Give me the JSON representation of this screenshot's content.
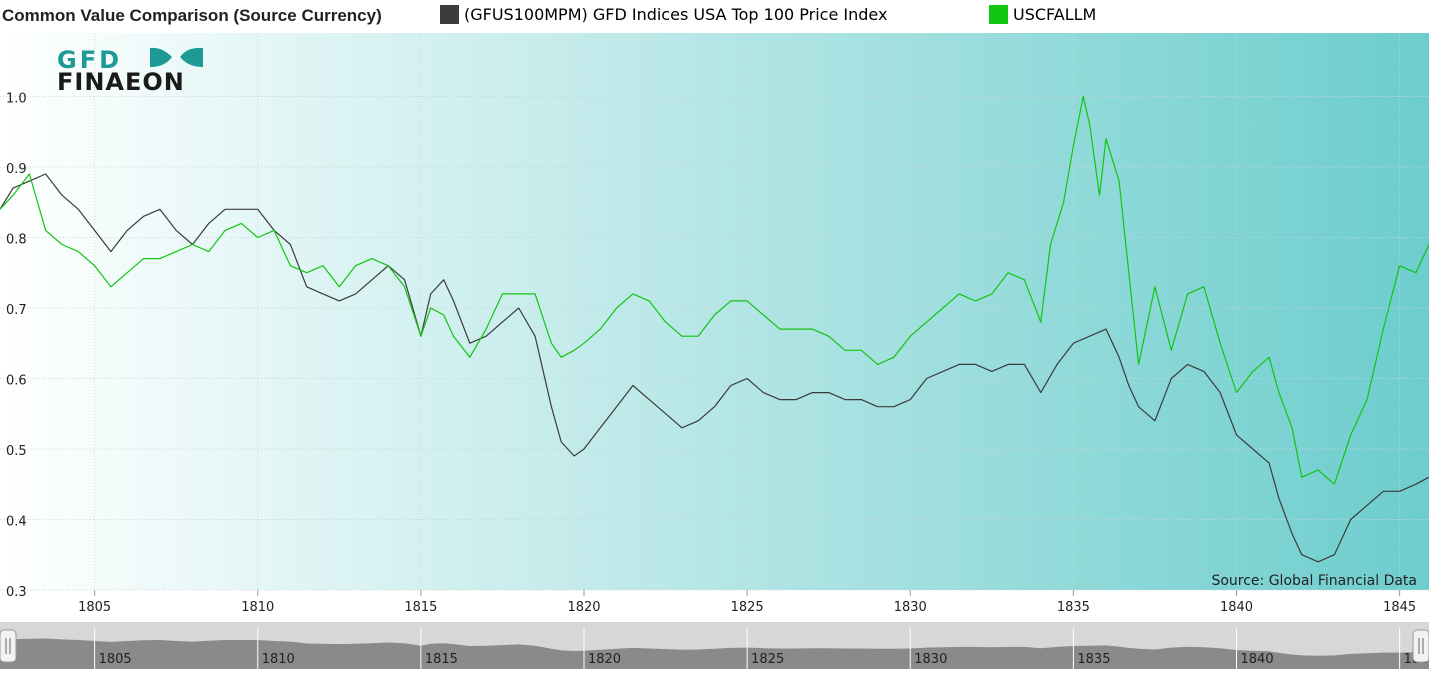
{
  "header": {
    "title": "Common Value Comparison (Source Currency)",
    "legend": [
      {
        "label": "(GFUS100MPM) GFD Indices USA Top 100 Price Index",
        "color": "#3b3b3b"
      },
      {
        "label": "USCFALLM",
        "color": "#11c511"
      }
    ]
  },
  "logo": {
    "top": "GFD",
    "bottom": "FINAEON"
  },
  "source_note": "Source: Global Financial Data",
  "colors": {
    "bg_left": "#ffffff",
    "bg_right": "#6dcdcd",
    "grid": "#c6d6d6",
    "series1": "#3b3b3b",
    "series2": "#11c511",
    "navigator_fill": "#8a8a8a",
    "navigator_bg": "#d7d7d7",
    "logo_teal": "#1e9a96",
    "logo_dark": "#1a1a1a"
  },
  "navigator": {
    "tick_labels": [
      "1805",
      "1810",
      "1815",
      "1820",
      "1825",
      "1830",
      "1835",
      "1840",
      "1845"
    ]
  },
  "chart_data": {
    "type": "line",
    "title": "Common Value Comparison (Source Currency)",
    "xlabel": "",
    "ylabel": "",
    "xlim": [
      1802.1,
      1845.9
    ],
    "ylim": [
      0.3,
      1.09
    ],
    "x_ticks": [
      1805,
      1810,
      1815,
      1820,
      1825,
      1830,
      1835,
      1840,
      1845
    ],
    "y_ticks": [
      0.3,
      0.4,
      0.5,
      0.6,
      0.7,
      0.8,
      0.9,
      1.0
    ],
    "grid": "on",
    "legend_position": "top",
    "series": [
      {
        "name": "(GFUS100MPM) GFD Indices USA Top 100 Price Index",
        "x": [
          1802.1,
          1802.5,
          1803.0,
          1803.5,
          1804.0,
          1804.5,
          1805.0,
          1805.5,
          1806.0,
          1806.5,
          1807.0,
          1807.5,
          1808.0,
          1808.5,
          1809.0,
          1809.5,
          1810.0,
          1810.5,
          1811.0,
          1811.5,
          1812.0,
          1812.5,
          1813.0,
          1813.5,
          1814.0,
          1814.5,
          1815.0,
          1815.3,
          1815.7,
          1816.0,
          1816.5,
          1817.0,
          1817.5,
          1818.0,
          1818.5,
          1819.0,
          1819.3,
          1819.7,
          1820.0,
          1820.5,
          1821.0,
          1821.5,
          1822.0,
          1822.5,
          1823.0,
          1823.5,
          1824.0,
          1824.5,
          1825.0,
          1825.5,
          1826.0,
          1826.5,
          1827.0,
          1827.5,
          1828.0,
          1828.5,
          1829.0,
          1829.5,
          1830.0,
          1830.5,
          1831.0,
          1831.5,
          1832.0,
          1832.5,
          1833.0,
          1833.5,
          1834.0,
          1834.5,
          1835.0,
          1835.5,
          1836.0,
          1836.4,
          1836.7,
          1837.0,
          1837.5,
          1838.0,
          1838.5,
          1839.0,
          1839.5,
          1840.0,
          1840.5,
          1841.0,
          1841.3,
          1841.7,
          1842.0,
          1842.5,
          1843.0,
          1843.5,
          1844.0,
          1844.5,
          1845.0,
          1845.5,
          1845.9
        ],
        "values": [
          0.84,
          0.87,
          0.88,
          0.89,
          0.86,
          0.84,
          0.81,
          0.78,
          0.81,
          0.83,
          0.84,
          0.81,
          0.79,
          0.82,
          0.84,
          0.84,
          0.84,
          0.81,
          0.79,
          0.73,
          0.72,
          0.71,
          0.72,
          0.74,
          0.76,
          0.74,
          0.66,
          0.72,
          0.74,
          0.71,
          0.65,
          0.66,
          0.68,
          0.7,
          0.66,
          0.56,
          0.51,
          0.49,
          0.5,
          0.53,
          0.56,
          0.59,
          0.57,
          0.55,
          0.53,
          0.54,
          0.56,
          0.59,
          0.6,
          0.58,
          0.57,
          0.57,
          0.58,
          0.58,
          0.57,
          0.57,
          0.56,
          0.56,
          0.57,
          0.6,
          0.61,
          0.62,
          0.62,
          0.61,
          0.62,
          0.62,
          0.58,
          0.62,
          0.65,
          0.66,
          0.67,
          0.63,
          0.59,
          0.56,
          0.54,
          0.6,
          0.62,
          0.61,
          0.58,
          0.52,
          0.5,
          0.48,
          0.43,
          0.38,
          0.35,
          0.34,
          0.35,
          0.4,
          0.42,
          0.44,
          0.44,
          0.45,
          0.46
        ]
      },
      {
        "name": "USCFALLM",
        "x": [
          1802.1,
          1802.5,
          1803.0,
          1803.5,
          1804.0,
          1804.5,
          1805.0,
          1805.5,
          1806.0,
          1806.5,
          1807.0,
          1807.5,
          1808.0,
          1808.5,
          1809.0,
          1809.5,
          1810.0,
          1810.5,
          1811.0,
          1811.5,
          1812.0,
          1812.5,
          1813.0,
          1813.5,
          1814.0,
          1814.5,
          1815.0,
          1815.3,
          1815.7,
          1816.0,
          1816.5,
          1817.0,
          1817.5,
          1818.0,
          1818.5,
          1819.0,
          1819.3,
          1819.7,
          1820.0,
          1820.5,
          1821.0,
          1821.5,
          1822.0,
          1822.5,
          1823.0,
          1823.5,
          1824.0,
          1824.5,
          1825.0,
          1825.5,
          1826.0,
          1826.5,
          1827.0,
          1827.5,
          1828.0,
          1828.5,
          1829.0,
          1829.5,
          1830.0,
          1830.5,
          1831.0,
          1831.5,
          1832.0,
          1832.5,
          1833.0,
          1833.5,
          1834.0,
          1834.3,
          1834.7,
          1835.0,
          1835.3,
          1835.5,
          1835.8,
          1836.0,
          1836.4,
          1836.7,
          1837.0,
          1837.5,
          1838.0,
          1838.5,
          1839.0,
          1839.5,
          1840.0,
          1840.5,
          1841.0,
          1841.3,
          1841.7,
          1842.0,
          1842.5,
          1843.0,
          1843.5,
          1844.0,
          1844.5,
          1845.0,
          1845.5,
          1845.9
        ],
        "values": [
          0.84,
          0.86,
          0.89,
          0.81,
          0.79,
          0.78,
          0.76,
          0.73,
          0.75,
          0.77,
          0.77,
          0.78,
          0.79,
          0.78,
          0.81,
          0.82,
          0.8,
          0.81,
          0.76,
          0.75,
          0.76,
          0.73,
          0.76,
          0.77,
          0.76,
          0.73,
          0.66,
          0.7,
          0.69,
          0.66,
          0.63,
          0.67,
          0.72,
          0.72,
          0.72,
          0.65,
          0.63,
          0.64,
          0.65,
          0.67,
          0.7,
          0.72,
          0.71,
          0.68,
          0.66,
          0.66,
          0.69,
          0.71,
          0.71,
          0.69,
          0.67,
          0.67,
          0.67,
          0.66,
          0.64,
          0.64,
          0.62,
          0.63,
          0.66,
          0.68,
          0.7,
          0.72,
          0.71,
          0.72,
          0.75,
          0.74,
          0.68,
          0.79,
          0.85,
          0.93,
          1.0,
          0.96,
          0.86,
          0.94,
          0.88,
          0.75,
          0.62,
          0.73,
          0.64,
          0.72,
          0.73,
          0.65,
          0.58,
          0.61,
          0.63,
          0.58,
          0.53,
          0.46,
          0.47,
          0.45,
          0.52,
          0.57,
          0.67,
          0.76,
          0.75,
          0.79
        ]
      }
    ],
    "annotations": [
      "Source: Global Financial Data"
    ]
  }
}
